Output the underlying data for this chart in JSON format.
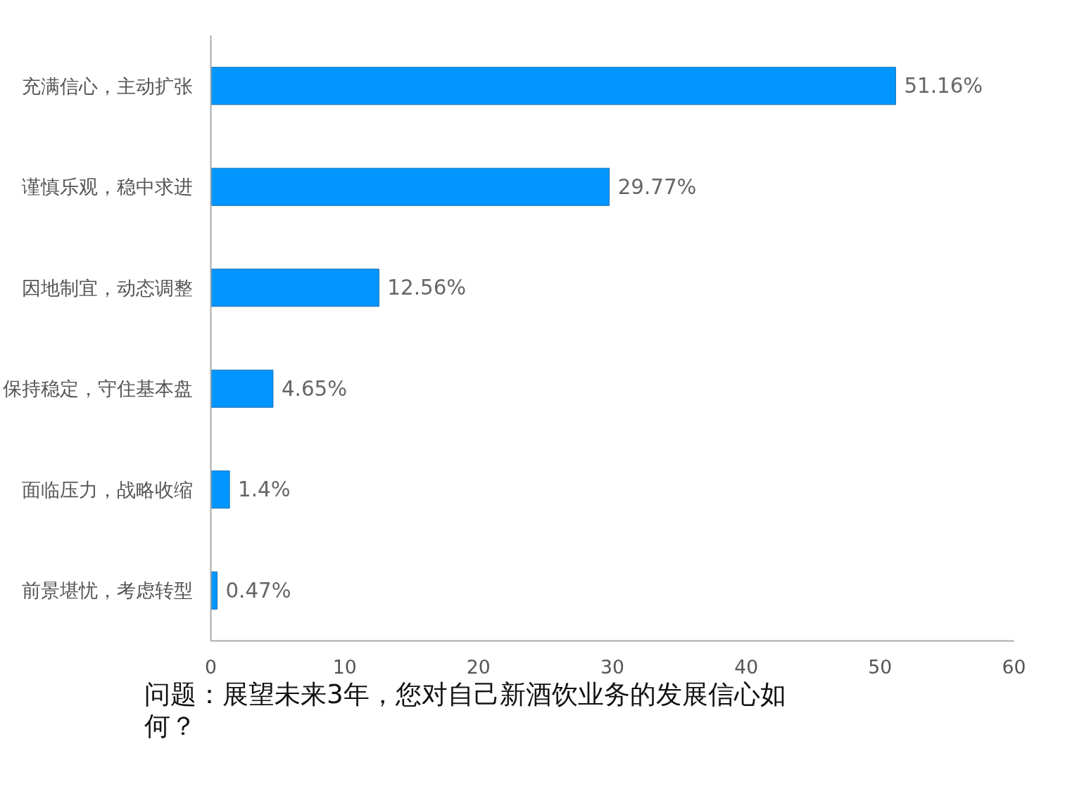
{
  "chart_data": {
    "type": "bar",
    "orientation": "horizontal",
    "categories": [
      "充满信心，主动扩张",
      "谨慎乐观，稳中求进",
      "因地制宜，动态调整",
      "保持稳定，守住基本盘",
      "面临压力，战略收缩",
      "前景堪忧，考虑转型"
    ],
    "values": [
      51.16,
      29.77,
      12.56,
      4.65,
      1.4,
      0.47
    ],
    "value_labels": [
      "51.16%",
      "29.77%",
      "12.56%",
      "4.65%",
      "1.4%",
      "0.47%"
    ],
    "color": "#0095ff",
    "xlim": [
      0,
      60
    ],
    "xticks": [
      0,
      10,
      20,
      30,
      40,
      50,
      60
    ],
    "grid": false,
    "annotations": [
      "问题：展望未来3年，您对自己新酒饮业务的发展信心如何？"
    ]
  }
}
